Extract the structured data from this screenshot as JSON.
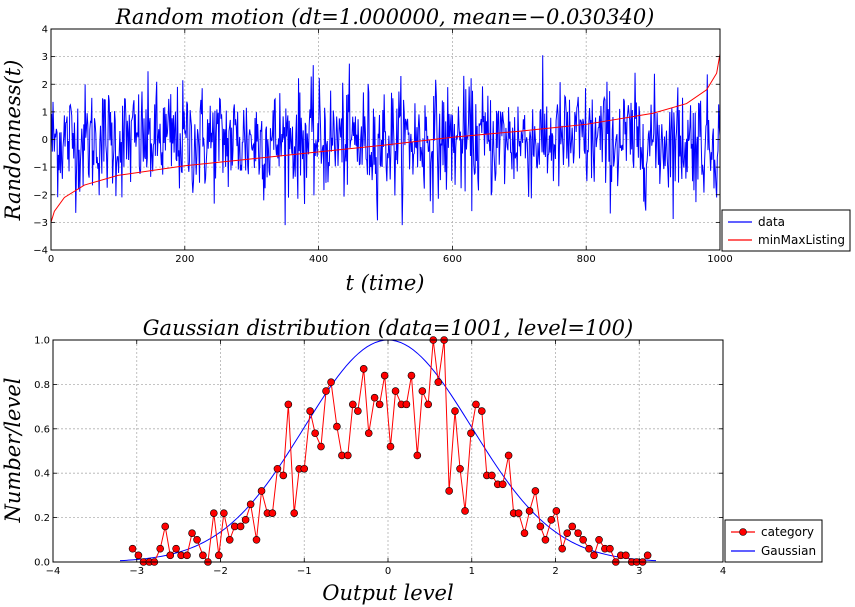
{
  "chart_data": [
    {
      "type": "line",
      "title": "Random motion (dt=1.000000, mean=−0.030340)",
      "xlabel": "t (time)",
      "ylabel": "Randomness(t)",
      "xlim": [
        0,
        1000
      ],
      "ylim": [
        -4,
        4
      ],
      "xticks": [
        "0",
        "200",
        "400",
        "600",
        "800",
        "1000"
      ],
      "yticks": [
        "−4",
        "−3",
        "−2",
        "−1",
        "0",
        "1",
        "2",
        "3",
        "4"
      ],
      "grid": true,
      "legend": "outside-bottom-right",
      "series": [
        {
          "name": "data",
          "color": "#0000ff",
          "description_points": "1001 random samples approx. Gaussian, mean −0.03, std ~1",
          "n": 1001,
          "mean": -0.03034
        },
        {
          "name": "minMaxListing",
          "color": "#ff0000",
          "x": [
            0,
            5,
            20,
            50,
            100,
            200,
            300,
            400,
            500,
            600,
            700,
            800,
            900,
            950,
            980,
            995,
            1000
          ],
          "y": [
            -3.0,
            -2.6,
            -2.1,
            -1.65,
            -1.3,
            -0.95,
            -0.7,
            -0.45,
            -0.2,
            0.08,
            0.3,
            0.55,
            0.95,
            1.3,
            1.8,
            2.4,
            3.1
          ]
        }
      ]
    },
    {
      "type": "line",
      "title": "Gaussian distribution (data=1001, level=100)",
      "xlabel": "Output level",
      "ylabel": "Number/level",
      "xlim": [
        -4,
        4
      ],
      "ylim": [
        0,
        1.0
      ],
      "xticks": [
        "−4",
        "−3",
        "−2",
        "−1",
        "0",
        "1",
        "2",
        "3",
        "4"
      ],
      "yticks": [
        "0.0",
        "0.2",
        "0.4",
        "0.6",
        "0.8",
        "1.0"
      ],
      "grid": true,
      "legend": "outside-bottom-right",
      "series": [
        {
          "name": "category",
          "color": "#ff0000",
          "marker": "circle",
          "x": [
            -3.05,
            -2.98,
            -2.92,
            -2.85,
            -2.79,
            -2.72,
            -2.66,
            -2.6,
            -2.53,
            -2.47,
            -2.4,
            -2.34,
            -2.28,
            -2.21,
            -2.15,
            -2.08,
            -2.02,
            -1.96,
            -1.89,
            -1.83,
            -1.76,
            -1.7,
            -1.64,
            -1.57,
            -1.51,
            -1.44,
            -1.38,
            -1.32,
            -1.25,
            -1.19,
            -1.12,
            -1.06,
            -1.0,
            -0.93,
            -0.87,
            -0.8,
            -0.74,
            -0.68,
            -0.61,
            -0.55,
            -0.48,
            -0.42,
            -0.36,
            -0.29,
            -0.23,
            -0.16,
            -0.1,
            -0.04,
            0.03,
            0.09,
            0.16,
            0.22,
            0.28,
            0.35,
            0.41,
            0.48,
            0.54,
            0.6,
            0.67,
            0.73,
            0.8,
            0.86,
            0.92,
            0.99,
            1.05,
            1.12,
            1.18,
            1.24,
            1.31,
            1.37,
            1.44,
            1.5,
            1.56,
            1.63,
            1.69,
            1.76,
            1.82,
            1.88,
            1.95,
            2.01,
            2.08,
            2.14,
            2.2,
            2.27,
            2.33,
            2.4,
            2.46,
            2.52,
            2.59,
            2.65,
            2.72,
            2.78,
            2.84,
            2.91,
            2.97,
            3.04,
            3.1
          ],
          "y": [
            0.06,
            0.03,
            0.0,
            0.0,
            0.0,
            0.06,
            0.16,
            0.03,
            0.06,
            0.03,
            0.03,
            0.13,
            0.1,
            0.03,
            0.0,
            0.22,
            0.03,
            0.22,
            0.1,
            0.16,
            0.16,
            0.19,
            0.26,
            0.1,
            0.32,
            0.22,
            0.22,
            0.42,
            0.39,
            0.71,
            0.22,
            0.42,
            0.42,
            0.68,
            0.58,
            0.52,
            0.77,
            0.81,
            0.61,
            0.48,
            0.48,
            0.71,
            0.68,
            0.87,
            0.58,
            0.74,
            0.71,
            0.84,
            0.52,
            0.77,
            0.71,
            0.71,
            0.84,
            0.48,
            0.77,
            0.71,
            1.0,
            0.81,
            1.0,
            0.32,
            0.68,
            0.42,
            0.23,
            0.58,
            0.71,
            0.68,
            0.39,
            0.39,
            0.35,
            0.35,
            0.48,
            0.22,
            0.22,
            0.13,
            0.23,
            0.32,
            0.16,
            0.1,
            0.19,
            0.23,
            0.06,
            0.13,
            0.16,
            0.13,
            0.1,
            0.06,
            0.03,
            0.1,
            0.06,
            0.06,
            0.0,
            0.03,
            0.03,
            0.0,
            0.0,
            0.0,
            0.03
          ]
        },
        {
          "name": "Gaussian",
          "color": "#0000ff",
          "function": "exp(-x^2/2)",
          "mu": 0,
          "sigma": 1
        }
      ]
    }
  ]
}
